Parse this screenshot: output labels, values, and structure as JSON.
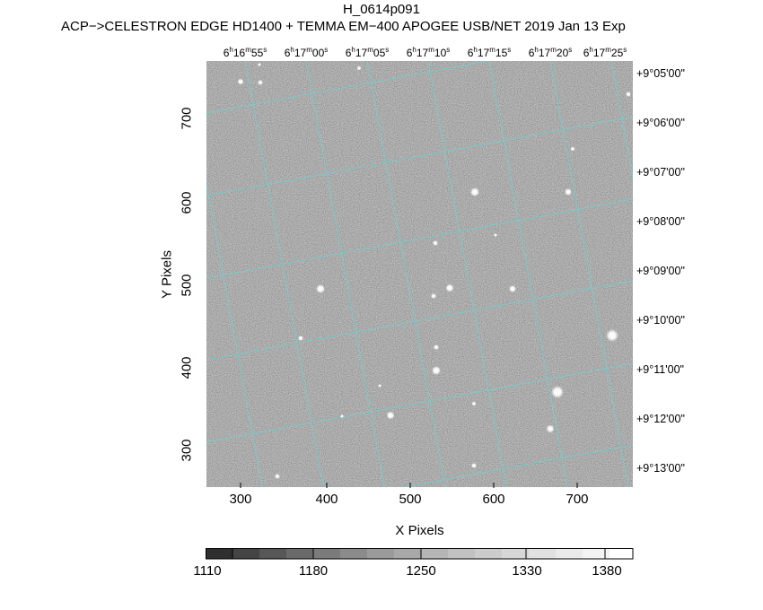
{
  "title": "H_0614p091",
  "subtitle": "ACP−>CELESTRON EDGE HD1400 + TEMMA EM−400 APOGEE USB/NET   2019 Jan 13     Exp",
  "ra_labels": [
    {
      "h": "6",
      "m": "16",
      "s": "55"
    },
    {
      "h": "6",
      "m": "17",
      "s": "00"
    },
    {
      "h": "6",
      "m": "17",
      "s": "05"
    },
    {
      "h": "6",
      "m": "17",
      "s": "10"
    },
    {
      "h": "6",
      "m": "17",
      "s": "15"
    },
    {
      "h": "6",
      "m": "17",
      "s": "20"
    },
    {
      "h": "6",
      "m": "17",
      "s": "25"
    }
  ],
  "dec_labels": [
    "+9°05'00\"",
    "+9°06'00\"",
    "+9°07'00\"",
    "+9°08'00\"",
    "+9°09'00\"",
    "+9°10'00\"",
    "+9°11'00\"",
    "+9°12'00\"",
    "+9°13'00\""
  ],
  "x_axis": {
    "label": "X Pixels",
    "ticks": [
      "300",
      "400",
      "500",
      "600",
      "700"
    ]
  },
  "y_axis": {
    "label": "Y Pixels",
    "ticks": [
      "300",
      "400",
      "500",
      "600",
      "700"
    ]
  },
  "colorbar": {
    "labels": [
      "1110",
      "1180",
      "1250",
      "1330",
      "1380"
    ]
  },
  "colors": {
    "grid": "#6fd0d0",
    "background": "#7a7a7a"
  }
}
